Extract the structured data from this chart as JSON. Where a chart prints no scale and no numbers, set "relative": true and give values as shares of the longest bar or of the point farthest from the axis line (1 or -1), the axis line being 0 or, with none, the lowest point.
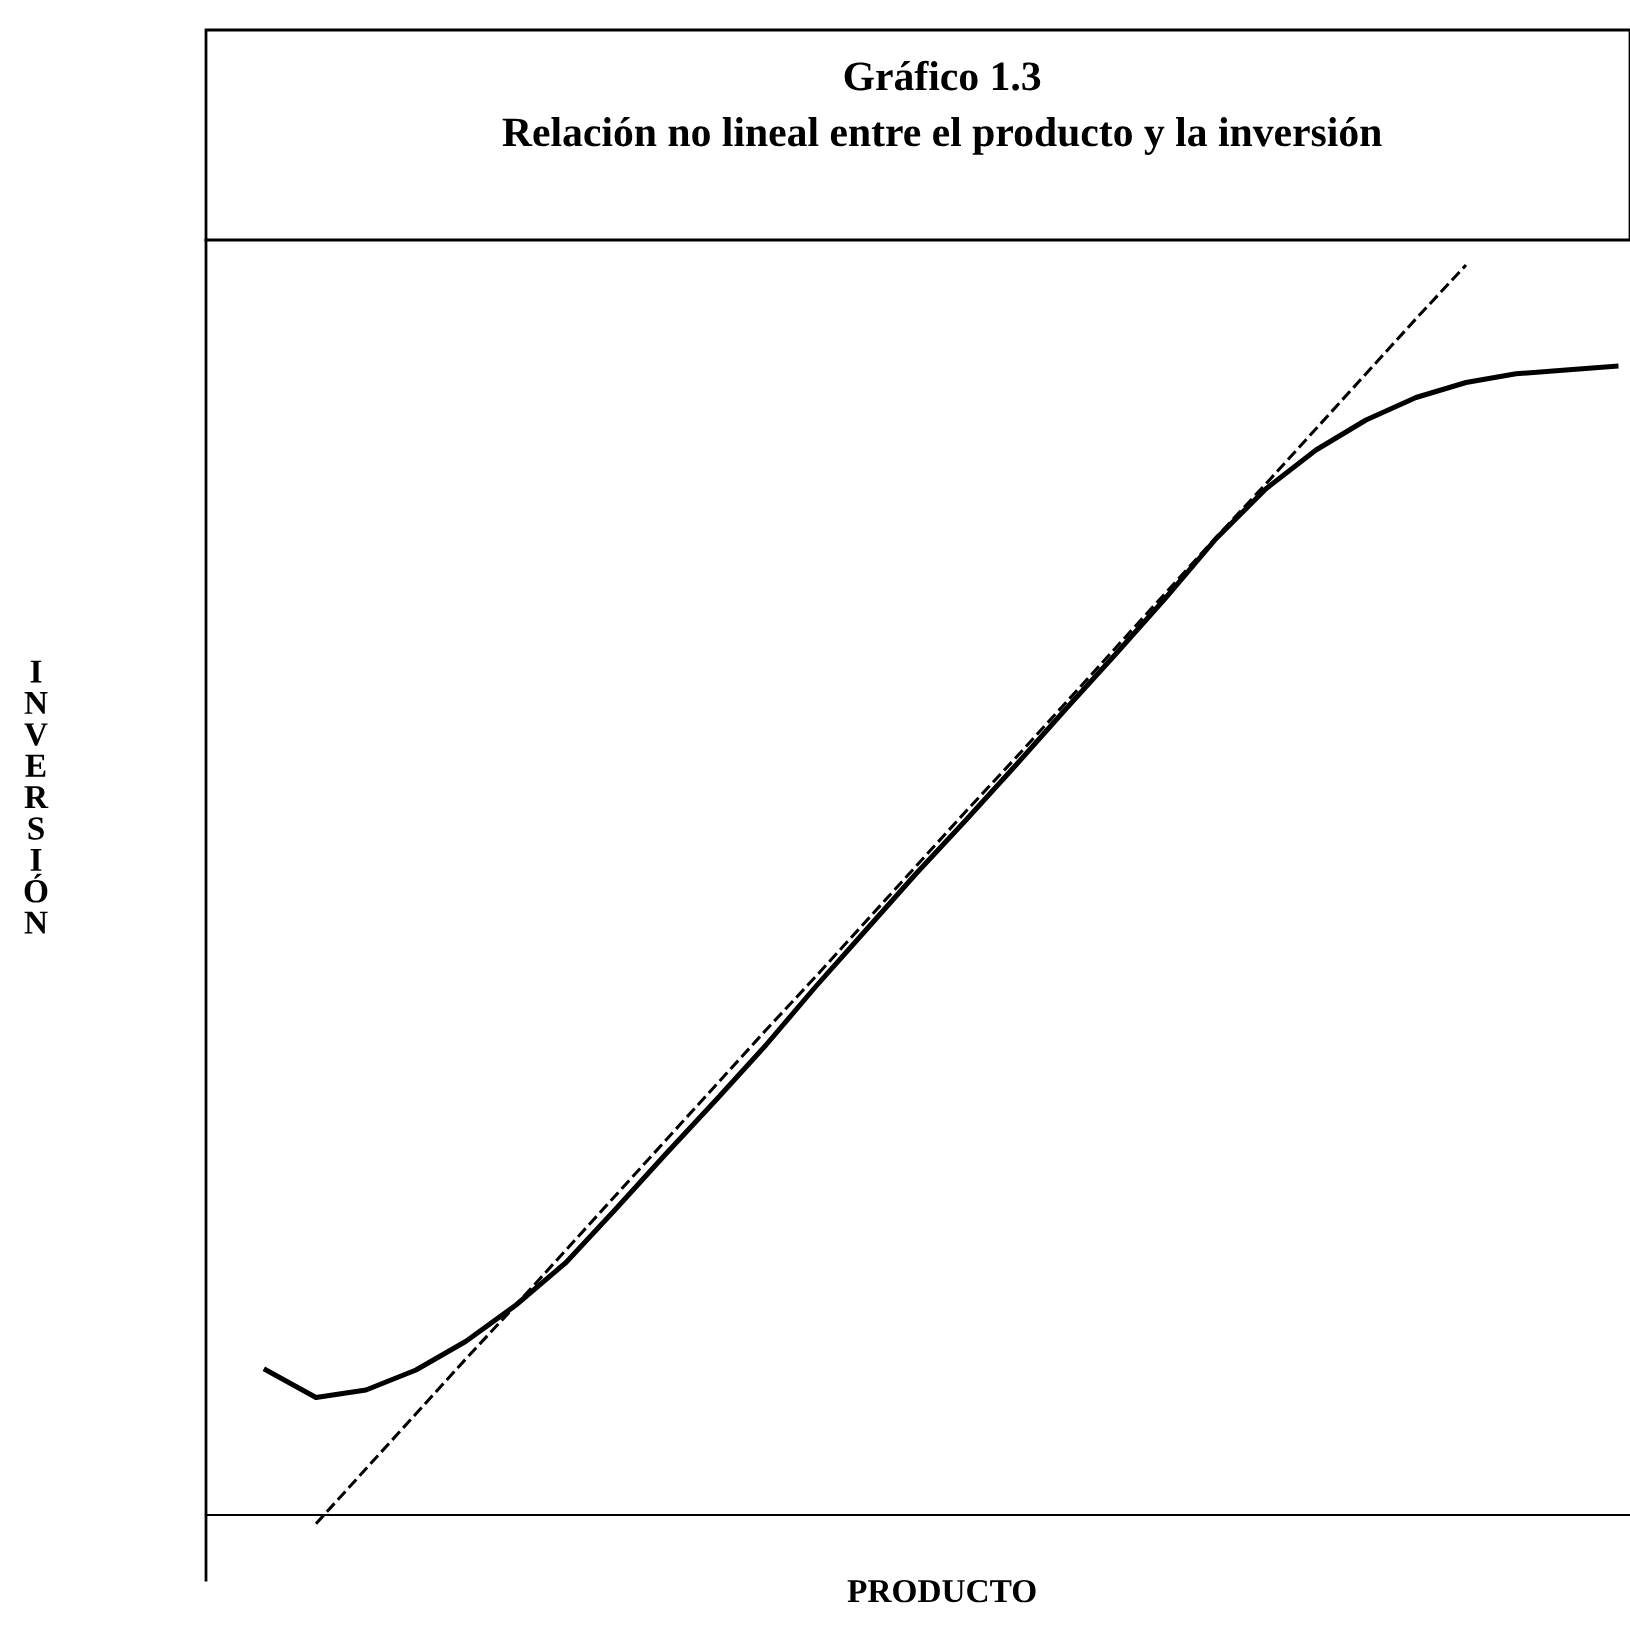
{
  "chart_data": {
    "type": "line",
    "title": "Gráfico 1.3",
    "subtitle": "Relación no lineal entre el producto y la inversión",
    "xlabel": "PRODUCTO",
    "ylabel": "INVERSIÓN",
    "relative": true,
    "grid": false,
    "legend": false,
    "categories": [
      null,
      null,
      null,
      null,
      null,
      null,
      null,
      null,
      null,
      null,
      null,
      null,
      null,
      null,
      null,
      null,
      null,
      null,
      null,
      null,
      null,
      null,
      null,
      null,
      null,
      null,
      null,
      null
    ],
    "series": [
      {
        "color": "#000000",
        "line_style": "solid",
        "values": [
          0.116,
          0.094,
          0.1,
          0.116,
          0.139,
          0.168,
          0.202,
          0.245,
          0.289,
          0.332,
          0.376,
          0.423,
          0.468,
          0.513,
          0.556,
          0.6,
          0.645,
          0.689,
          0.734,
          0.781,
          0.821,
          0.852,
          0.876,
          0.894,
          0.906,
          0.913,
          0.916,
          0.919
        ]
      },
      {
        "color": "#000000",
        "line_style": "dashed",
        "values": [
          null,
          -0.007,
          0.037,
          0.081,
          0.125,
          0.168,
          0.212,
          0.256,
          0.3,
          0.344,
          0.388,
          0.431,
          0.475,
          0.519,
          0.563,
          0.606,
          0.65,
          0.694,
          0.738,
          0.782,
          0.825,
          0.869,
          0.913,
          0.957,
          1.0,
          null,
          null,
          null
        ]
      }
    ]
  }
}
